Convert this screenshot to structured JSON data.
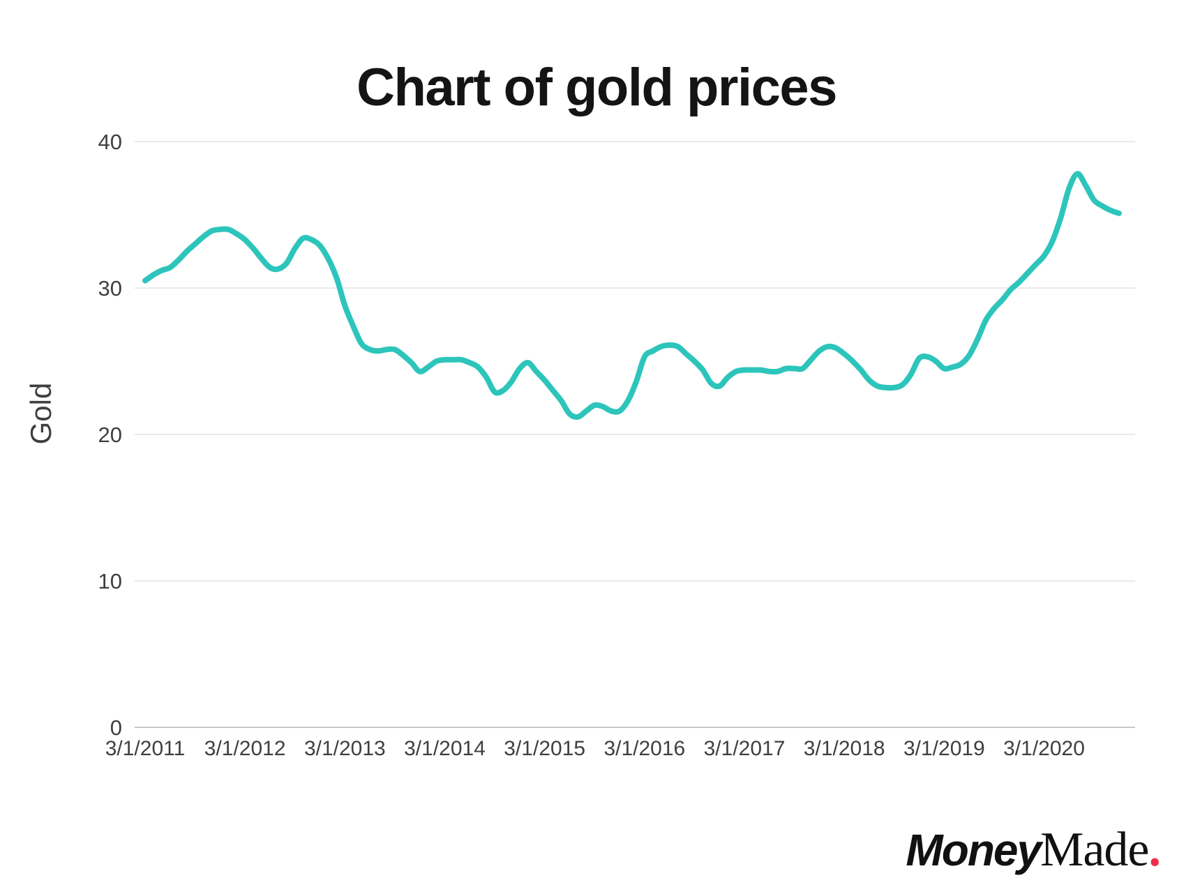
{
  "title": "Chart of gold prices",
  "y_axis_title": "Gold",
  "logo": {
    "money": "Money",
    "made": "Made",
    "dot": ".",
    "dot_color": "#ed2b4a"
  },
  "colors": {
    "line": "#2dc5bb",
    "grid": "#e4e4e4",
    "axis_line": "#c7c7c7",
    "tick_label": "#3f3f3f",
    "title": "#141414"
  },
  "chart_data": {
    "type": "line",
    "title": "Chart of gold prices",
    "xlabel": "",
    "ylabel": "Gold",
    "grid": "horizontal",
    "legend": "none",
    "ylim": [
      0,
      40
    ],
    "yticks": [
      0,
      10,
      20,
      30,
      40
    ],
    "xticks": [
      "3/1/2011",
      "3/1/2012",
      "3/1/2013",
      "3/1/2014",
      "3/1/2015",
      "3/1/2016",
      "3/1/2017",
      "3/1/2018",
      "3/1/2019",
      "3/1/2020"
    ],
    "series": [
      {
        "name": "Gold",
        "color": "#2dc5bb",
        "x": [
          "3/1/2011",
          "4/1/2011",
          "5/1/2011",
          "6/1/2011",
          "7/1/2011",
          "8/1/2011",
          "9/1/2011",
          "10/1/2011",
          "11/1/2011",
          "12/1/2011",
          "1/1/2012",
          "2/1/2012",
          "3/1/2012",
          "4/1/2012",
          "5/1/2012",
          "6/1/2012",
          "7/1/2012",
          "8/1/2012",
          "9/1/2012",
          "10/1/2012",
          "11/1/2012",
          "12/1/2012",
          "1/1/2013",
          "2/1/2013",
          "3/1/2013",
          "4/1/2013",
          "5/1/2013",
          "6/1/2013",
          "7/1/2013",
          "8/1/2013",
          "9/1/2013",
          "10/1/2013",
          "11/1/2013",
          "12/1/2013",
          "1/1/2014",
          "2/1/2014",
          "3/1/2014",
          "4/1/2014",
          "5/1/2014",
          "6/1/2014",
          "7/1/2014",
          "8/1/2014",
          "9/1/2014",
          "10/1/2014",
          "11/1/2014",
          "12/1/2014",
          "1/1/2015",
          "2/1/2015",
          "3/1/2015",
          "4/1/2015",
          "5/1/2015",
          "6/1/2015",
          "7/1/2015",
          "8/1/2015",
          "9/1/2015",
          "10/1/2015",
          "11/1/2015",
          "12/1/2015",
          "1/1/2016",
          "2/1/2016",
          "3/1/2016",
          "4/1/2016",
          "5/1/2016",
          "6/1/2016",
          "7/1/2016",
          "8/1/2016",
          "9/1/2016",
          "10/1/2016",
          "11/1/2016",
          "12/1/2016",
          "1/1/2017",
          "2/1/2017",
          "3/1/2017",
          "4/1/2017",
          "5/1/2017",
          "6/1/2017",
          "7/1/2017",
          "8/1/2017",
          "9/1/2017",
          "10/1/2017",
          "11/1/2017",
          "12/1/2017",
          "1/1/2018",
          "2/1/2018",
          "3/1/2018",
          "4/1/2018",
          "5/1/2018",
          "6/1/2018",
          "7/1/2018",
          "8/1/2018",
          "9/1/2018",
          "10/1/2018",
          "11/1/2018",
          "12/1/2018",
          "1/1/2019",
          "2/1/2019",
          "3/1/2019",
          "4/1/2019",
          "5/1/2019",
          "6/1/2019",
          "7/1/2019",
          "8/1/2019",
          "9/1/2019",
          "10/1/2019",
          "11/1/2019",
          "12/1/2019",
          "1/1/2020",
          "2/1/2020",
          "3/1/2020",
          "4/1/2020",
          "5/1/2020",
          "6/1/2020",
          "7/1/2020",
          "8/1/2020",
          "9/1/2020",
          "10/1/2020",
          "11/1/2020",
          "12/1/2020"
        ],
        "values": [
          30.5,
          30.9,
          31.2,
          31.4,
          31.9,
          32.5,
          33.0,
          33.5,
          33.9,
          34.0,
          34.0,
          33.7,
          33.3,
          32.7,
          32.0,
          31.4,
          31.3,
          31.7,
          32.7,
          33.4,
          33.3,
          32.9,
          32.0,
          30.7,
          28.8,
          27.4,
          26.2,
          25.8,
          25.7,
          25.8,
          25.8,
          25.4,
          24.9,
          24.3,
          24.6,
          25.0,
          25.1,
          25.1,
          25.1,
          24.9,
          24.6,
          23.9,
          22.9,
          23.0,
          23.6,
          24.5,
          24.9,
          24.3,
          23.7,
          23.0,
          22.3,
          21.4,
          21.2,
          21.6,
          22.0,
          21.9,
          21.6,
          21.6,
          22.3,
          23.6,
          25.3,
          25.7,
          26.0,
          26.1,
          26.0,
          25.5,
          25.0,
          24.4,
          23.5,
          23.3,
          23.9,
          24.3,
          24.4,
          24.4,
          24.4,
          24.3,
          24.3,
          24.5,
          24.5,
          24.5,
          25.1,
          25.7,
          26.0,
          25.9,
          25.5,
          25.0,
          24.4,
          23.7,
          23.3,
          23.2,
          23.2,
          23.4,
          24.1,
          25.2,
          25.3,
          25.0,
          24.5,
          24.6,
          24.8,
          25.4,
          26.5,
          27.8,
          28.6,
          29.2,
          29.9,
          30.4,
          31.0,
          31.6,
          32.2,
          33.2,
          34.8,
          36.8,
          37.8,
          37.0,
          36.0,
          35.6,
          35.3,
          35.1
        ]
      }
    ]
  }
}
